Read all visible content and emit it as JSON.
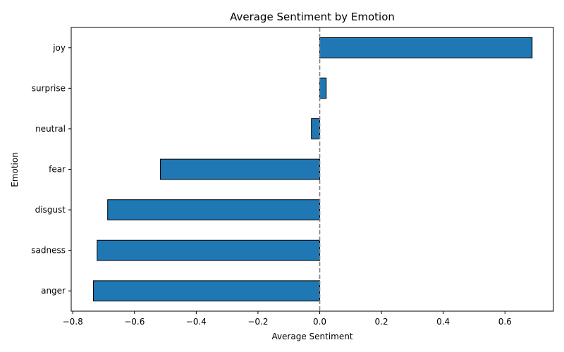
{
  "chart_data": {
    "type": "bar",
    "orientation": "horizontal",
    "title": "Average Sentiment by Emotion",
    "xlabel": "Average Sentiment",
    "ylabel": "Emotion",
    "categories": [
      "anger",
      "sadness",
      "disgust",
      "fear",
      "neutral",
      "surprise",
      "joy"
    ],
    "values": [
      -0.733,
      -0.721,
      -0.687,
      -0.516,
      -0.027,
      0.021,
      0.688
    ],
    "xlim": [
      -0.805,
      0.757
    ],
    "xticks": [
      -0.8,
      -0.6,
      -0.4,
      -0.2,
      0.0,
      0.2,
      0.4,
      0.6
    ],
    "xtick_labels": [
      "−0.8",
      "−0.6",
      "−0.4",
      "−0.2",
      "0.0",
      "0.2",
      "0.4",
      "0.6"
    ],
    "reference_line": {
      "x": 0,
      "style": "dashed",
      "color": "#808080"
    },
    "bar_color": "#1f77b4",
    "bar_edge_color": "#000000",
    "grid": false,
    "legend": "none"
  }
}
